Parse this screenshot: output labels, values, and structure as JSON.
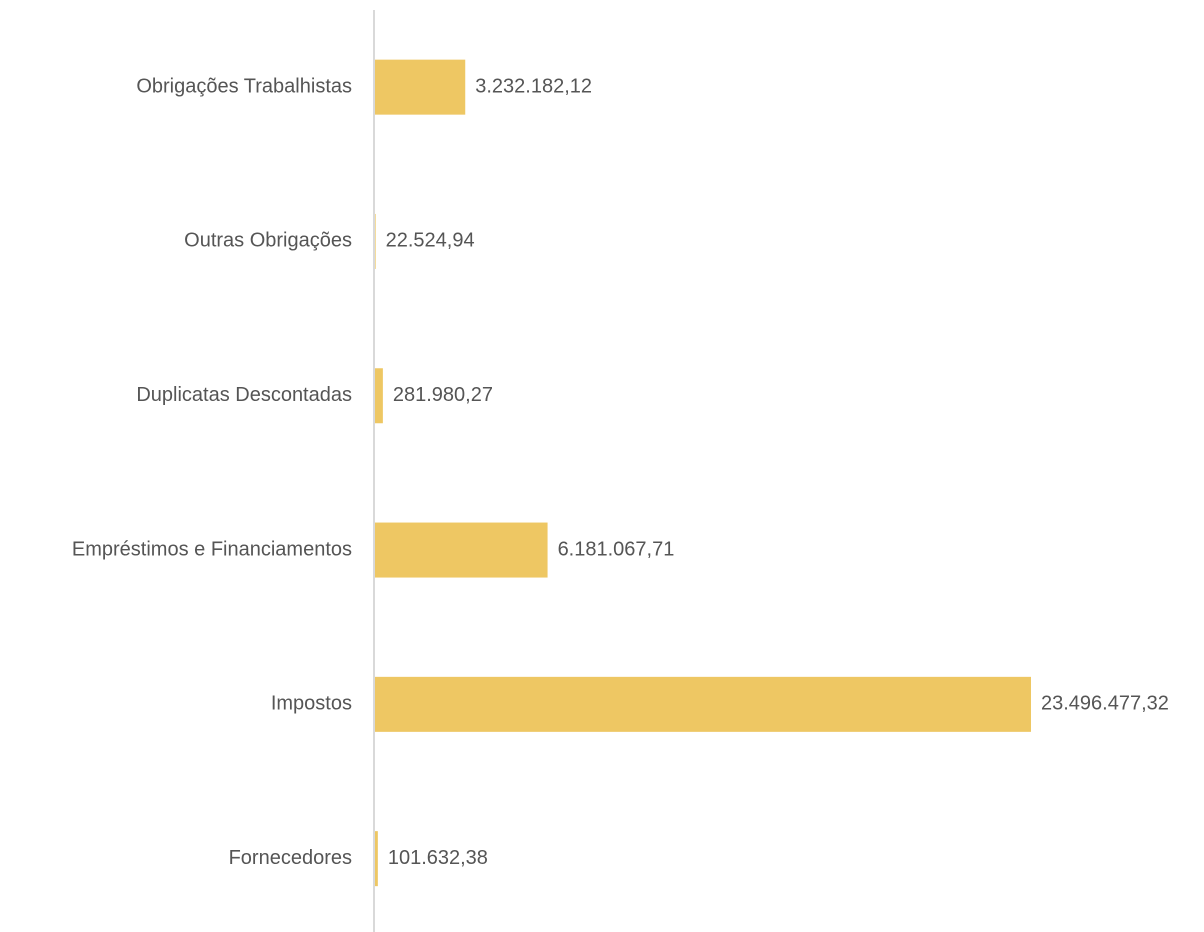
{
  "chart_data": {
    "type": "bar",
    "orientation": "horizontal",
    "categories": [
      "Obrigações Trabalhistas",
      "Outras Obrigações",
      "Duplicatas Descontadas",
      "Empréstimos e Financiamentos",
      "Impostos",
      "Fornecedores"
    ],
    "values": [
      3232182.12,
      22524.94,
      281980.27,
      6181067.71,
      23496477.32,
      101632.38
    ],
    "value_labels": [
      "3.232.182,12",
      "22.524,94",
      "281.980,27",
      "6.181.067,71",
      "23.496.477,32",
      "101.632,38"
    ],
    "color": "#eec763"
  }
}
